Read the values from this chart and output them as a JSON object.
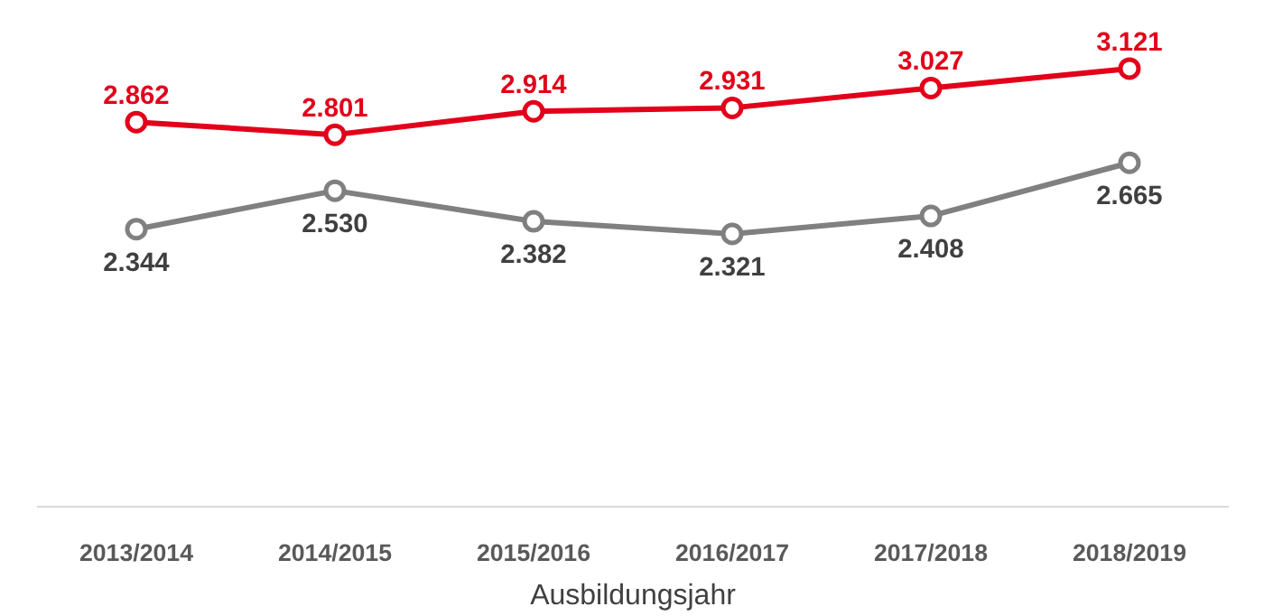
{
  "chart_data": {
    "type": "line",
    "xlabel": "Ausbildungsjahr",
    "categories": [
      "2013/2014",
      "2014/2015",
      "2015/2016",
      "2016/2017",
      "2017/2018",
      "2018/2019"
    ],
    "series": [
      {
        "color": "#e2001a",
        "values": [
          2862,
          2801,
          2914,
          2931,
          3027,
          3121
        ],
        "value_labels": [
          "2.862",
          "2.801",
          "2.914",
          "2.931",
          "3.027",
          "3.121"
        ]
      },
      {
        "color": "#808080",
        "values": [
          2344,
          2530,
          2382,
          2321,
          2408,
          2665
        ],
        "value_labels": [
          "2.344",
          "2.530",
          "2.382",
          "2.321",
          "2.408",
          "2.665"
        ]
      }
    ],
    "tick_labels": "x",
    "grid": false,
    "marker": "circle",
    "line_style": "solid"
  }
}
